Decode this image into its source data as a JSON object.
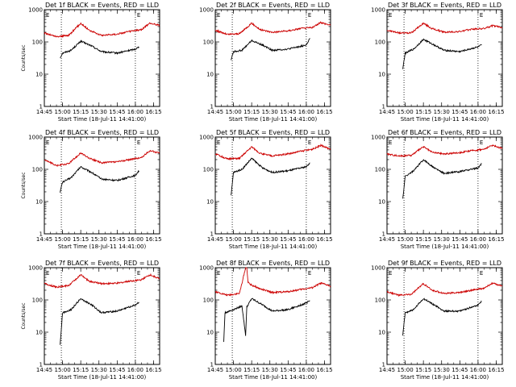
{
  "chart_data": [
    {
      "type": "line",
      "title": "Det 1f BLACK = Events, RED = LLD",
      "xlabel": "Start Time (18-Jul-11 14:41:00)",
      "ylabel": "Counts/sec",
      "yscale": "log",
      "ylim": [
        1,
        1000
      ],
      "xlim": [
        "14:45",
        "16:20"
      ],
      "x_ticks": [
        "14:45",
        "15:00",
        "15:15",
        "15:30",
        "15:45",
        "16:00",
        "16:15"
      ],
      "y_ticks": [
        "1",
        "10",
        "100",
        "1000"
      ],
      "markers": [
        "E",
        "E"
      ],
      "grid": false,
      "legend": "none",
      "series": [
        {
          "color": "#000000",
          "x": [
            "14:58",
            "15:00",
            "15:07",
            "15:15",
            "15:24",
            "15:32",
            "15:45",
            "16:00",
            "16:03"
          ],
          "values": [
            32,
            45,
            55,
            105,
            75,
            50,
            45,
            60,
            70
          ]
        },
        {
          "color": "#cc0000",
          "x": [
            "14:45",
            "14:55",
            "15:05",
            "15:15",
            "15:22",
            "15:32",
            "15:45",
            "15:55",
            "16:05",
            "16:12",
            "16:20"
          ],
          "values": [
            190,
            145,
            160,
            380,
            230,
            160,
            175,
            210,
            240,
            380,
            330
          ]
        }
      ]
    },
    {
      "type": "line",
      "title": "Det 2f BLACK = Events, RED = LLD",
      "xlabel": "Start Time (18-Jul-11 14:41:00)",
      "ylabel": "",
      "yscale": "log",
      "ylim": [
        1,
        1000
      ],
      "xlim": [
        "14:45",
        "16:20"
      ],
      "x_ticks": [
        "14:45",
        "15:00",
        "15:15",
        "15:30",
        "15:45",
        "16:00",
        "16:15"
      ],
      "y_ticks": [
        "1",
        "10",
        "100",
        "1000"
      ],
      "markers": [
        "E",
        "E"
      ],
      "grid": false,
      "legend": "none",
      "series": [
        {
          "color": "#000000",
          "x": [
            "14:58",
            "15:00",
            "15:07",
            "15:15",
            "15:24",
            "15:32",
            "15:45",
            "16:00",
            "16:03"
          ],
          "values": [
            28,
            50,
            55,
            110,
            80,
            55,
            60,
            80,
            130
          ]
        },
        {
          "color": "#cc0000",
          "x": [
            "14:45",
            "14:55",
            "15:05",
            "15:15",
            "15:22",
            "15:32",
            "15:45",
            "15:55",
            "16:05",
            "16:12",
            "16:20"
          ],
          "values": [
            230,
            170,
            180,
            380,
            240,
            200,
            220,
            260,
            280,
            400,
            330
          ]
        }
      ]
    },
    {
      "type": "line",
      "title": "Det 3f BLACK = Events, RED = LLD",
      "xlabel": "Start Time (18-Jul-11 14:41:00)",
      "ylabel": "",
      "yscale": "log",
      "ylim": [
        1,
        1000
      ],
      "xlim": [
        "14:45",
        "16:20"
      ],
      "x_ticks": [
        "14:45",
        "15:00",
        "15:15",
        "15:30",
        "15:45",
        "16:00",
        "16:15"
      ],
      "y_ticks": [
        "1",
        "10",
        "100",
        "1000"
      ],
      "markers": [
        "E",
        "E"
      ],
      "grid": false,
      "legend": "none",
      "series": [
        {
          "color": "#000000",
          "x": [
            "14:58",
            "15:00",
            "15:07",
            "15:15",
            "15:24",
            "15:32",
            "15:45",
            "16:00",
            "16:03"
          ],
          "values": [
            15,
            45,
            60,
            120,
            80,
            55,
            50,
            70,
            80
          ]
        },
        {
          "color": "#cc0000",
          "x": [
            "14:45",
            "14:55",
            "15:05",
            "15:15",
            "15:22",
            "15:32",
            "15:45",
            "15:55",
            "16:05",
            "16:12",
            "16:20"
          ],
          "values": [
            230,
            190,
            190,
            380,
            260,
            200,
            210,
            250,
            260,
            320,
            280
          ]
        }
      ]
    },
    {
      "type": "line",
      "title": "Det 4f BLACK = Events, RED = LLD",
      "xlabel": "Start Time (18-Jul-11 14:41:00)",
      "ylabel": "Counts/sec",
      "yscale": "log",
      "ylim": [
        1,
        1000
      ],
      "xlim": [
        "14:45",
        "16:20"
      ],
      "x_ticks": [
        "14:45",
        "15:00",
        "15:15",
        "15:30",
        "15:45",
        "16:00",
        "16:15"
      ],
      "y_ticks": [
        "1",
        "10",
        "100",
        "1000"
      ],
      "markers": [
        "E",
        "E"
      ],
      "grid": false,
      "legend": "none",
      "series": [
        {
          "color": "#000000",
          "x": [
            "14:58",
            "15:00",
            "15:07",
            "15:15",
            "15:24",
            "15:32",
            "15:45",
            "16:00",
            "16:03"
          ],
          "values": [
            20,
            40,
            55,
            120,
            80,
            50,
            45,
            65,
            90
          ]
        },
        {
          "color": "#cc0000",
          "x": [
            "14:45",
            "14:55",
            "15:05",
            "15:15",
            "15:22",
            "15:32",
            "15:45",
            "15:55",
            "16:05",
            "16:12",
            "16:20"
          ],
          "values": [
            200,
            130,
            150,
            320,
            220,
            160,
            170,
            200,
            230,
            380,
            320
          ]
        }
      ]
    },
    {
      "type": "line",
      "title": "Det 5f BLACK = Events, RED = LLD",
      "xlabel": "Start Time (18-Jul-11 14:41:00)",
      "ylabel": "",
      "yscale": "log",
      "ylim": [
        1,
        1000
      ],
      "xlim": [
        "14:45",
        "16:20"
      ],
      "x_ticks": [
        "14:45",
        "15:00",
        "15:15",
        "15:30",
        "15:45",
        "16:00",
        "16:15"
      ],
      "y_ticks": [
        "1",
        "10",
        "100",
        "1000"
      ],
      "markers": [
        "E",
        "E"
      ],
      "grid": false,
      "legend": "none",
      "series": [
        {
          "color": "#000000",
          "x": [
            "14:58",
            "15:00",
            "15:07",
            "15:15",
            "15:24",
            "15:32",
            "15:45",
            "16:00",
            "16:03"
          ],
          "values": [
            15,
            80,
            100,
            220,
            110,
            80,
            90,
            120,
            160
          ]
        },
        {
          "color": "#cc0000",
          "x": [
            "14:45",
            "14:55",
            "15:05",
            "15:15",
            "15:22",
            "15:32",
            "15:45",
            "15:55",
            "16:05",
            "16:12",
            "16:20"
          ],
          "values": [
            300,
            210,
            220,
            500,
            310,
            260,
            300,
            360,
            420,
            550,
            420
          ]
        }
      ]
    },
    {
      "type": "line",
      "title": "Det 6f BLACK = Events, RED = LLD",
      "xlabel": "Start Time (18-Jul-11 14:41:00)",
      "ylabel": "",
      "yscale": "log",
      "ylim": [
        1,
        1000
      ],
      "xlim": [
        "14:45",
        "16:20"
      ],
      "x_ticks": [
        "14:45",
        "15:00",
        "15:15",
        "15:30",
        "15:45",
        "16:00",
        "16:15"
      ],
      "y_ticks": [
        "1",
        "10",
        "100",
        "1000"
      ],
      "markers": [
        "E",
        "E"
      ],
      "grid": false,
      "legend": "none",
      "series": [
        {
          "color": "#000000",
          "x": [
            "14:58",
            "15:00",
            "15:07",
            "15:15",
            "15:24",
            "15:32",
            "15:45",
            "16:00",
            "16:03"
          ],
          "values": [
            12,
            60,
            90,
            200,
            110,
            75,
            85,
            110,
            150
          ]
        },
        {
          "color": "#cc0000",
          "x": [
            "14:45",
            "14:55",
            "15:05",
            "15:15",
            "15:22",
            "15:32",
            "15:45",
            "15:55",
            "16:05",
            "16:12",
            "16:20"
          ],
          "values": [
            300,
            260,
            270,
            500,
            340,
            300,
            330,
            380,
            420,
            560,
            440
          ]
        }
      ]
    },
    {
      "type": "line",
      "title": "Det 7f BLACK = Events, RED = LLD",
      "xlabel": "Start Time (18-Jul-11 14:41:00)",
      "ylabel": "Counts/sec",
      "yscale": "log",
      "ylim": [
        1,
        1000
      ],
      "xlim": [
        "14:45",
        "16:20"
      ],
      "x_ticks": [
        "14:45",
        "15:00",
        "15:15",
        "15:30",
        "15:45",
        "16:00",
        "16:15"
      ],
      "y_ticks": [
        "1",
        "10",
        "100",
        "1000"
      ],
      "markers": [
        "E",
        "E"
      ],
      "grid": false,
      "legend": "none",
      "series": [
        {
          "color": "#000000",
          "x": [
            "14:58",
            "15:00",
            "15:07",
            "15:15",
            "15:24",
            "15:32",
            "15:45",
            "16:00",
            "16:03"
          ],
          "values": [
            4,
            40,
            50,
            110,
            70,
            40,
            45,
            70,
            85
          ]
        },
        {
          "color": "#cc0000",
          "x": [
            "14:45",
            "14:55",
            "15:05",
            "15:15",
            "15:22",
            "15:32",
            "15:45",
            "15:55",
            "16:05",
            "16:12",
            "16:20"
          ],
          "values": [
            320,
            250,
            280,
            600,
            380,
            320,
            330,
            380,
            420,
            600,
            460
          ]
        }
      ]
    },
    {
      "type": "line",
      "title": "Det 8f BLACK = Events, RED = LLD",
      "xlabel": "Start Time (18-Jul-11 14:41:00)",
      "ylabel": "",
      "yscale": "log",
      "ylim": [
        1,
        1000
      ],
      "xlim": [
        "14:45",
        "16:20"
      ],
      "x_ticks": [
        "14:45",
        "15:00",
        "15:15",
        "15:30",
        "15:45",
        "16:00",
        "16:15"
      ],
      "y_ticks": [
        "1",
        "10",
        "100",
        "1000"
      ],
      "markers": [
        "E",
        "E"
      ],
      "grid": false,
      "legend": "none",
      "series": [
        {
          "color": "#000000",
          "x": [
            "14:52",
            "14:53",
            "15:00",
            "15:07",
            "15:10",
            "15:11",
            "15:15",
            "15:24",
            "15:32",
            "15:45",
            "16:00",
            "16:03"
          ],
          "values": [
            5,
            40,
            50,
            65,
            8,
            60,
            110,
            70,
            45,
            50,
            80,
            95
          ]
        },
        {
          "color": "#cc0000",
          "x": [
            "14:45",
            "14:55",
            "15:05",
            "15:10",
            "15:11",
            "15:12",
            "15:14",
            "15:22",
            "15:32",
            "15:45",
            "15:55",
            "16:05",
            "16:12",
            "16:20"
          ],
          "values": [
            180,
            140,
            160,
            1000,
            1000,
            350,
            300,
            220,
            170,
            180,
            210,
            240,
            330,
            270
          ]
        }
      ]
    },
    {
      "type": "line",
      "title": "Det 9f BLACK = Events, RED = LLD",
      "xlabel": "Start Time (18-Jul-11 14:41:00)",
      "ylabel": "",
      "yscale": "log",
      "ylim": [
        1,
        1000
      ],
      "xlim": [
        "14:45",
        "16:20"
      ],
      "x_ticks": [
        "14:45",
        "15:00",
        "15:15",
        "15:30",
        "15:45",
        "16:00",
        "16:15"
      ],
      "y_ticks": [
        "1",
        "10",
        "100",
        "1000"
      ],
      "markers": [
        "E",
        "E"
      ],
      "grid": false,
      "legend": "none",
      "series": [
        {
          "color": "#000000",
          "x": [
            "14:58",
            "15:00",
            "15:07",
            "15:15",
            "15:24",
            "15:32",
            "15:45",
            "16:00",
            "16:03"
          ],
          "values": [
            8,
            40,
            50,
            110,
            70,
            45,
            45,
            70,
            90
          ]
        },
        {
          "color": "#cc0000",
          "x": [
            "14:45",
            "14:55",
            "15:05",
            "15:15",
            "15:22",
            "15:32",
            "15:45",
            "15:55",
            "16:05",
            "16:12",
            "16:20"
          ],
          "values": [
            180,
            140,
            150,
            320,
            200,
            160,
            170,
            200,
            230,
            330,
            270
          ]
        }
      ]
    }
  ]
}
